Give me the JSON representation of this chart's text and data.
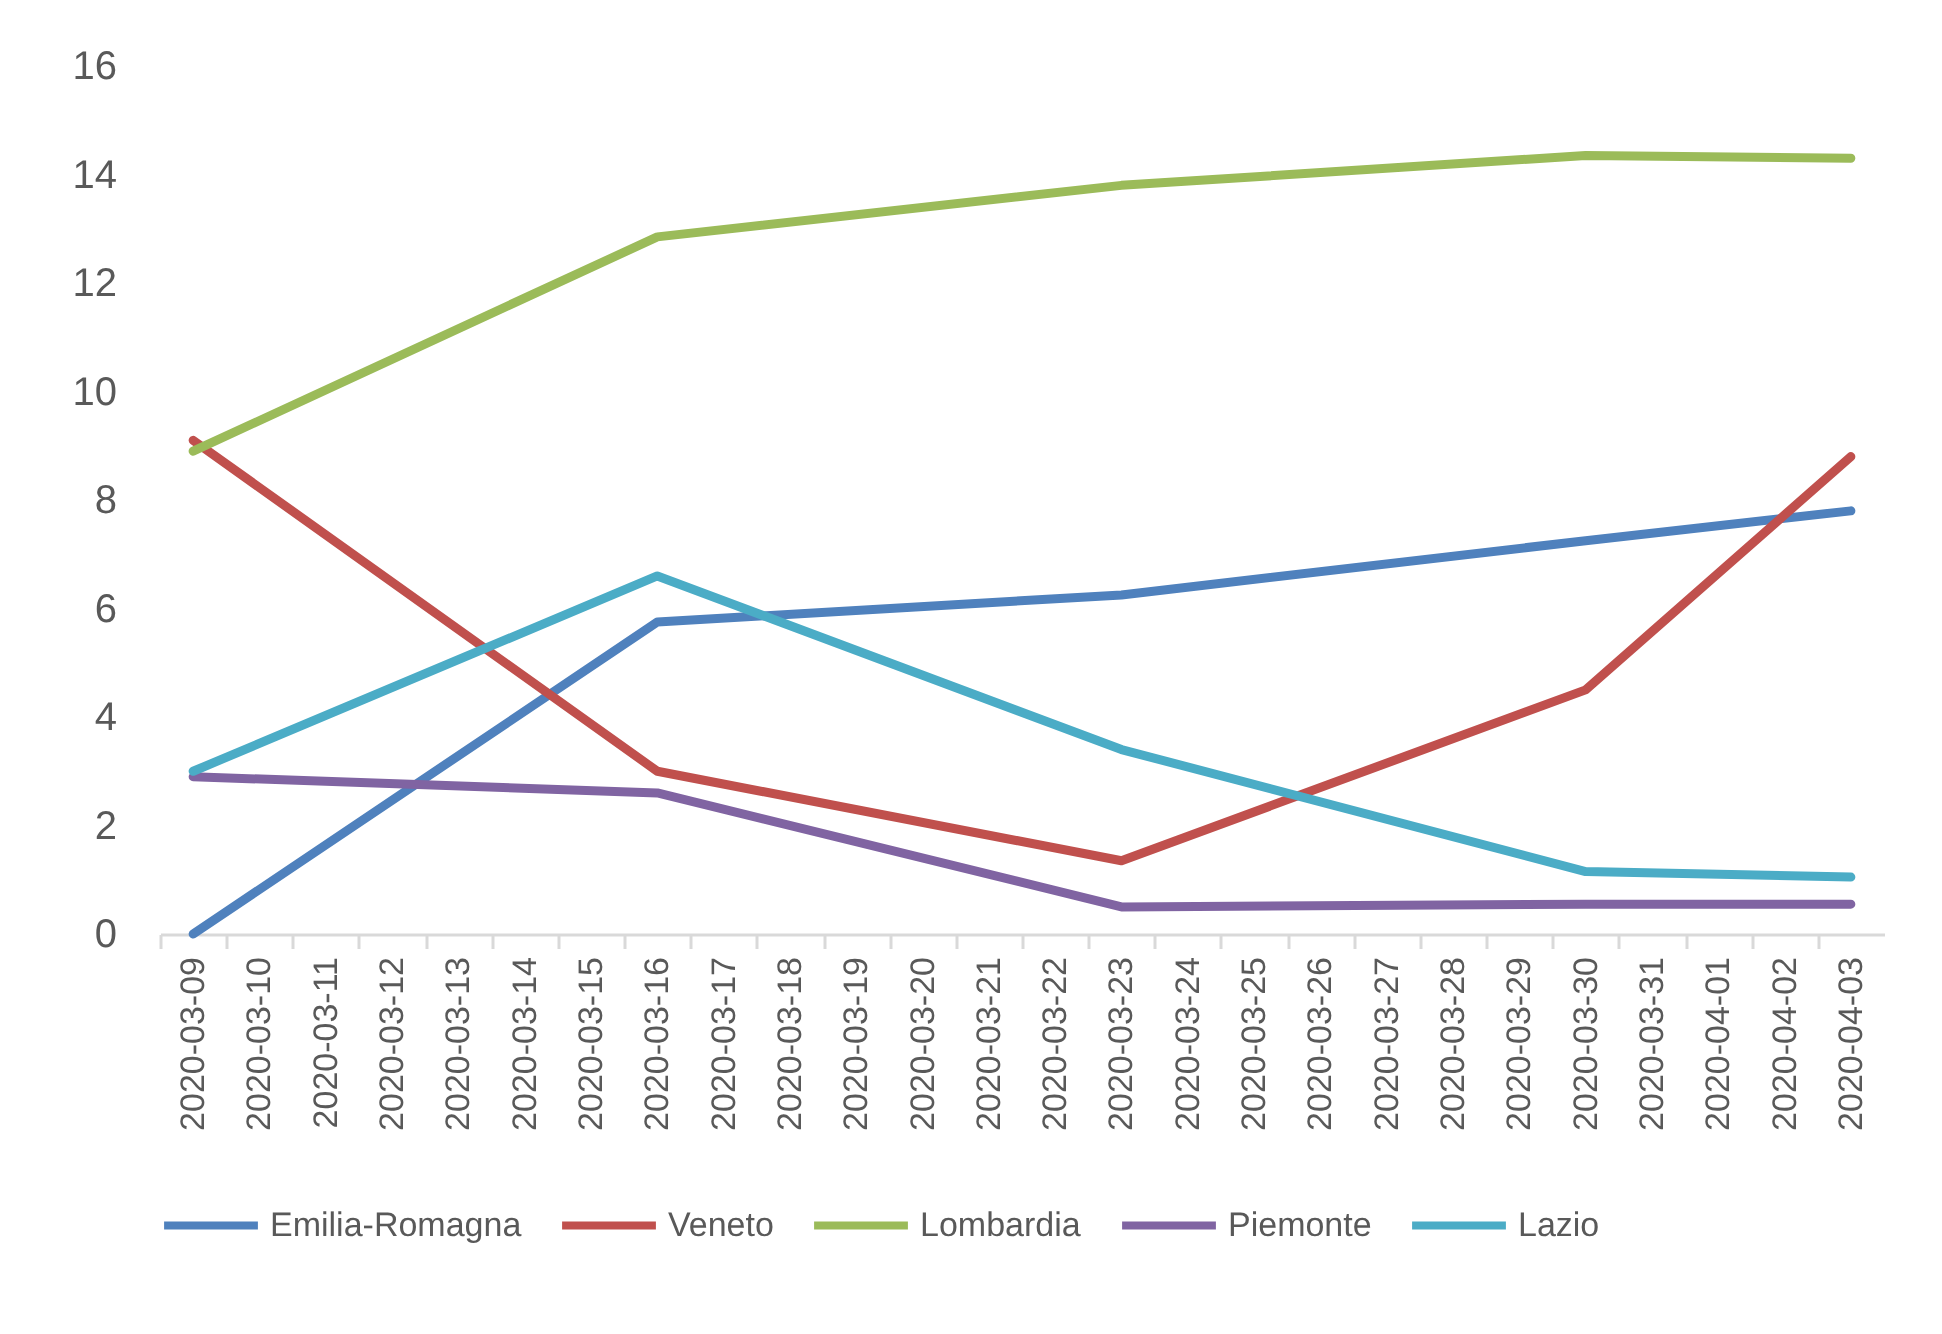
{
  "chart_data": {
    "type": "line",
    "xlim": [
      "2020-03-08T12:00",
      "2020-04-03T12:00"
    ],
    "xticks": [
      "2020-03-09",
      "2020-03-10",
      "2020-03-11",
      "2020-03-12",
      "2020-03-13",
      "2020-03-14",
      "2020-03-15",
      "2020-03-16",
      "2020-03-17",
      "2020-03-18",
      "2020-03-19",
      "2020-03-20",
      "2020-03-21",
      "2020-03-22",
      "2020-03-23",
      "2020-03-24",
      "2020-03-25",
      "2020-03-26",
      "2020-03-27",
      "2020-03-28",
      "2020-03-29",
      "2020-03-30",
      "2020-03-31",
      "2020-04-01",
      "2020-04-02",
      "2020-04-03"
    ],
    "x": [
      "2020-03-09",
      "2020-03-16",
      "2020-03-23",
      "2020-03-30",
      "2020-04-03"
    ],
    "ylim": [
      0,
      16
    ],
    "yticks": [
      0,
      2,
      4,
      6,
      8,
      10,
      12,
      14,
      16
    ],
    "series": [
      {
        "name": "Emilia-Romagna",
        "color": "#4f81bd",
        "values": [
          0.0,
          5.75,
          6.25,
          7.25,
          7.8
        ]
      },
      {
        "name": "Veneto",
        "color": "#c0504d",
        "values": [
          9.1,
          3.0,
          1.35,
          4.5,
          8.8
        ]
      },
      {
        "name": "Lombardia",
        "color": "#9bbb59",
        "values": [
          8.9,
          12.85,
          13.8,
          14.35,
          14.3
        ]
      },
      {
        "name": "Piemonte",
        "color": "#8064a2",
        "values": [
          2.9,
          2.6,
          0.5,
          0.55,
          0.55
        ]
      },
      {
        "name": "Lazio",
        "color": "#4bacc6",
        "values": [
          3.0,
          6.6,
          3.4,
          1.15,
          1.05
        ]
      }
    ],
    "line_style": "solid",
    "legend": "bottom"
  }
}
